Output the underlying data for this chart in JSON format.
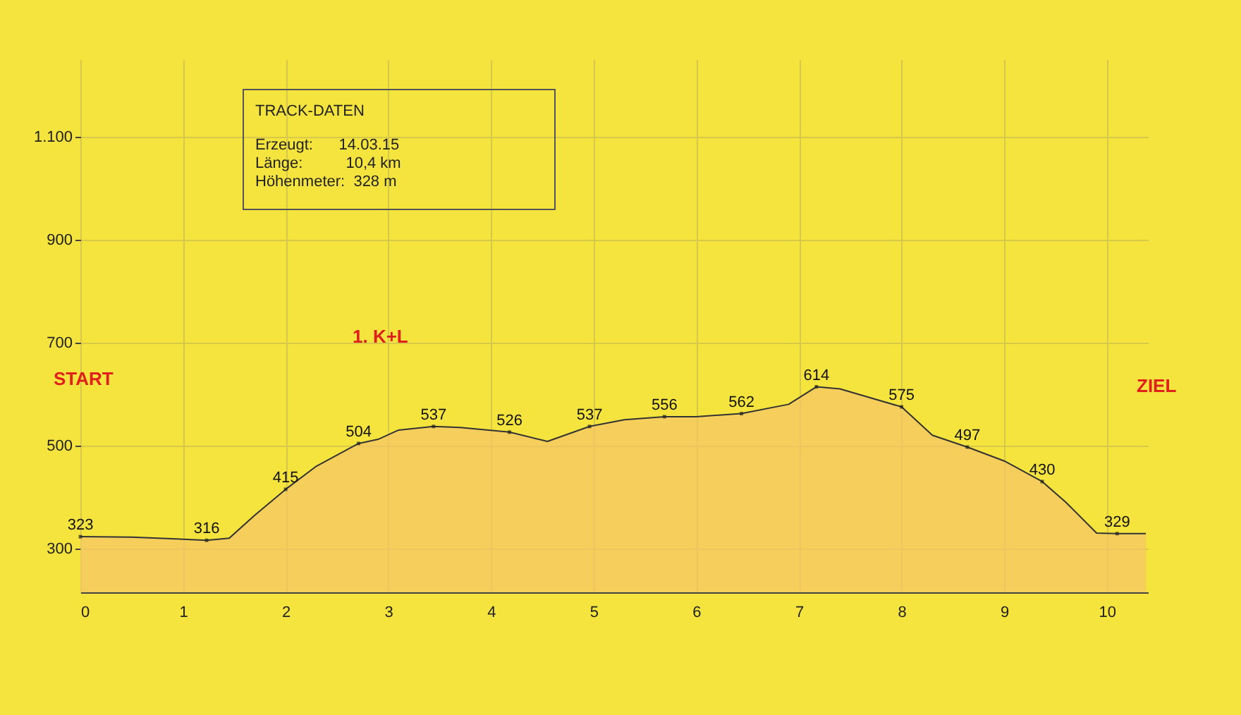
{
  "chart_data": {
    "type": "area",
    "xlim": [
      0,
      10.4
    ],
    "xticks": [
      0,
      1,
      2,
      3,
      4,
      5,
      6,
      7,
      8,
      9,
      10
    ],
    "ylim": [
      215,
      1250
    ],
    "yticks": [
      300,
      500,
      700,
      {
        "value": 900,
        "label": "900"
      },
      {
        "value": 1100,
        "label": "1.100"
      }
    ],
    "grid": true,
    "annotations": [
      "START",
      "1. K+L",
      "ZIEL",
      "TRACK-DATEN",
      "Erzeugt:      14.03.15",
      "Länge:          10,4 km",
      "Höhenmeter:  328 m"
    ],
    "series": [
      {
        "color": "#f7c46a",
        "x": [
          0,
          0.5,
          1.0,
          1.23,
          1.45,
          1.7,
          2.0,
          2.3,
          2.71,
          2.9,
          3.1,
          3.44,
          3.7,
          4.18,
          4.55,
          4.96,
          5.3,
          5.69,
          6.0,
          6.44,
          6.9,
          7.17,
          7.4,
          8.0,
          8.3,
          8.64,
          9.0,
          9.37,
          9.6,
          9.9,
          10.1,
          10.38
        ],
        "values": [
          323,
          322,
          318,
          316,
          320,
          365,
          415,
          460,
          504,
          512,
          530,
          537,
          535,
          526,
          508,
          537,
          550,
          556,
          556,
          562,
          580,
          614,
          610,
          575,
          520,
          497,
          470,
          430,
          390,
          330,
          329,
          329
        ],
        "value_labels": [
          "323",
          null,
          null,
          "316",
          null,
          null,
          "415",
          null,
          "504",
          null,
          null,
          "537",
          null,
          "526",
          null,
          "537",
          null,
          "556",
          null,
          "562",
          null,
          "614",
          null,
          "575",
          null,
          "497",
          null,
          "430",
          null,
          null,
          "329",
          null
        ]
      }
    ]
  }
}
